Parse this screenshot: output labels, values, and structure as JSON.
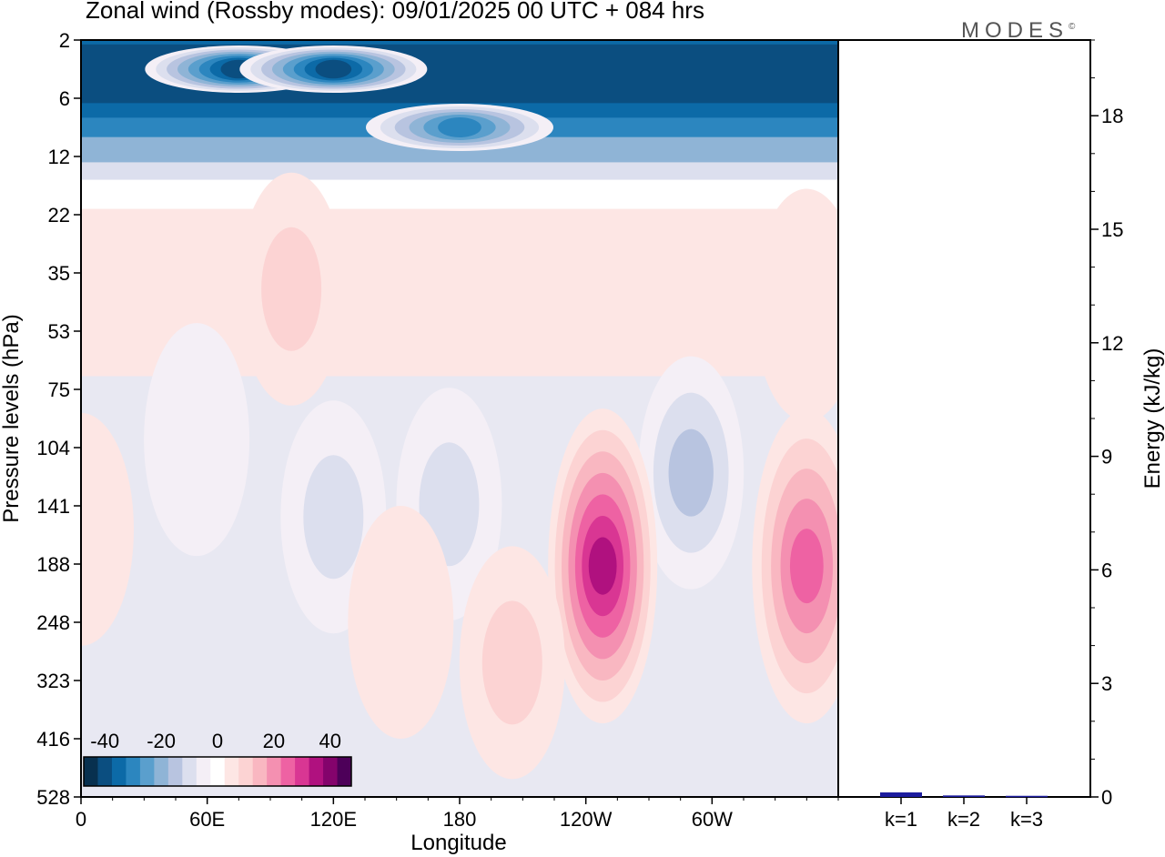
{
  "title": "Zonal wind (Rossby modes):  09/01/2025  00 UTC  + 084 hrs",
  "brand": "MODES",
  "brand_mark": "©",
  "colors": {
    "scale": [
      "#08304f",
      "#0b4e80",
      "#0c6aa7",
      "#2c86bf",
      "#5a9fcd",
      "#8fb4d6",
      "#b8c4e0",
      "#dcdfee",
      "#f4eff6",
      "#ffffff",
      "#fde6e4",
      "#fcd3d3",
      "#f9b7c1",
      "#f490b1",
      "#ee62a3",
      "#d93693",
      "#b0117f",
      "#84036c",
      "#4d0059"
    ],
    "bar": "#1c1c9e"
  },
  "chart_data": [
    {
      "type": "heatmap",
      "title": "Zonal wind (Rossby modes):  09/01/2025  00 UTC  + 084 hrs",
      "xlabel": "Longitude",
      "ylabel": "Pressure levels (hPa)",
      "x_ticks": [
        "0",
        "60E",
        "120E",
        "180",
        "120W",
        "60W"
      ],
      "y_ticks": [
        "2",
        "6",
        "12",
        "22",
        "35",
        "53",
        "75",
        "104",
        "141",
        "188",
        "248",
        "323",
        "416",
        "528"
      ],
      "xlim": [
        0,
        360
      ],
      "colorbar": {
        "labels": [
          "-40",
          "-20",
          "0",
          "20",
          "40"
        ],
        "range": [
          -45,
          45
        ],
        "step": 5
      },
      "features": [
        {
          "lon": 75,
          "p": 4,
          "u": -42
        },
        {
          "lon": 120,
          "p": 4,
          "u": -40
        },
        {
          "lon": 180,
          "p": 9,
          "u": -28
        },
        {
          "lon": 100,
          "p": 40,
          "u": 8
        },
        {
          "lon": 345,
          "p": 45,
          "u": 6
        },
        {
          "lon": 55,
          "p": 100,
          "u": -4
        },
        {
          "lon": 120,
          "p": 150,
          "u": -8
        },
        {
          "lon": 175,
          "p": 140,
          "u": -10
        },
        {
          "lon": 290,
          "p": 120,
          "u": -13
        },
        {
          "lon": 248,
          "p": 190,
          "u": 33
        },
        {
          "lon": 345,
          "p": 190,
          "u": 25
        },
        {
          "lon": 205,
          "p": 300,
          "u": 10
        },
        {
          "lon": 152,
          "p": 248,
          "u": 1
        },
        {
          "lon": 0,
          "p": 160,
          "u": 4
        }
      ]
    },
    {
      "type": "bar",
      "categories": [
        "k=1",
        "k=2",
        "k=3"
      ],
      "values": [
        0.12,
        0.04,
        0.03
      ],
      "ylabel": "Energy (kJ/kg)",
      "ylim": [
        0,
        20
      ],
      "y_ticks": [
        "0",
        "3",
        "6",
        "9",
        "12",
        "15",
        "18"
      ]
    }
  ]
}
